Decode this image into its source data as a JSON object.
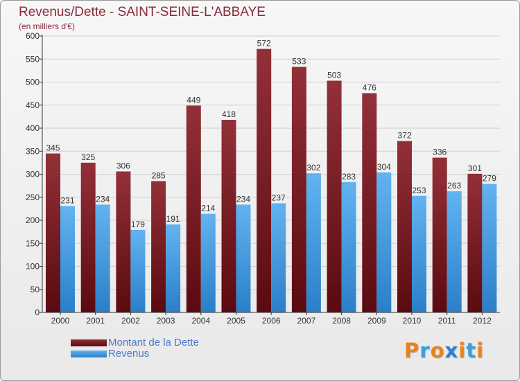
{
  "title": "Revenus/Dette - SAINT-SEINE-L'ABBAYE",
  "subtitle": "(en milliers d'€)",
  "colors": {
    "dette": "#7a1a22",
    "revenus": "#4aa0e6",
    "title": "#8b2a3c",
    "legend_text": "#4d78c9"
  },
  "logo": {
    "text": "Proxiti",
    "colors": [
      "#e8821e",
      "#3aa0dc",
      "#e8821e",
      "#2f7fd0",
      "#e8821e",
      "#3aa0dc",
      "#e8821e"
    ]
  },
  "chart_data": {
    "type": "bar",
    "title": "Revenus/Dette - SAINT-SEINE-L'ABBAYE",
    "subtitle": "(en milliers d'€)",
    "xlabel": "",
    "ylabel": "",
    "ylim": [
      0,
      600
    ],
    "yticks": [
      0,
      50,
      100,
      150,
      200,
      250,
      300,
      350,
      400,
      450,
      500,
      550,
      600
    ],
    "grid": true,
    "legend_position": "bottom-left",
    "categories": [
      "2000",
      "2001",
      "2002",
      "2003",
      "2004",
      "2005",
      "2006",
      "2007",
      "2008",
      "2009",
      "2010",
      "2011",
      "2012"
    ],
    "series": [
      {
        "name": "Montant de la Dette",
        "color": "#7a1a22",
        "values": [
          345,
          325,
          306,
          285,
          449,
          418,
          572,
          533,
          503,
          476,
          372,
          336,
          301
        ]
      },
      {
        "name": "Revenus",
        "color": "#4aa0e6",
        "values": [
          231,
          234,
          179,
          191,
          214,
          234,
          237,
          302,
          283,
          304,
          253,
          263,
          279
        ]
      }
    ]
  }
}
